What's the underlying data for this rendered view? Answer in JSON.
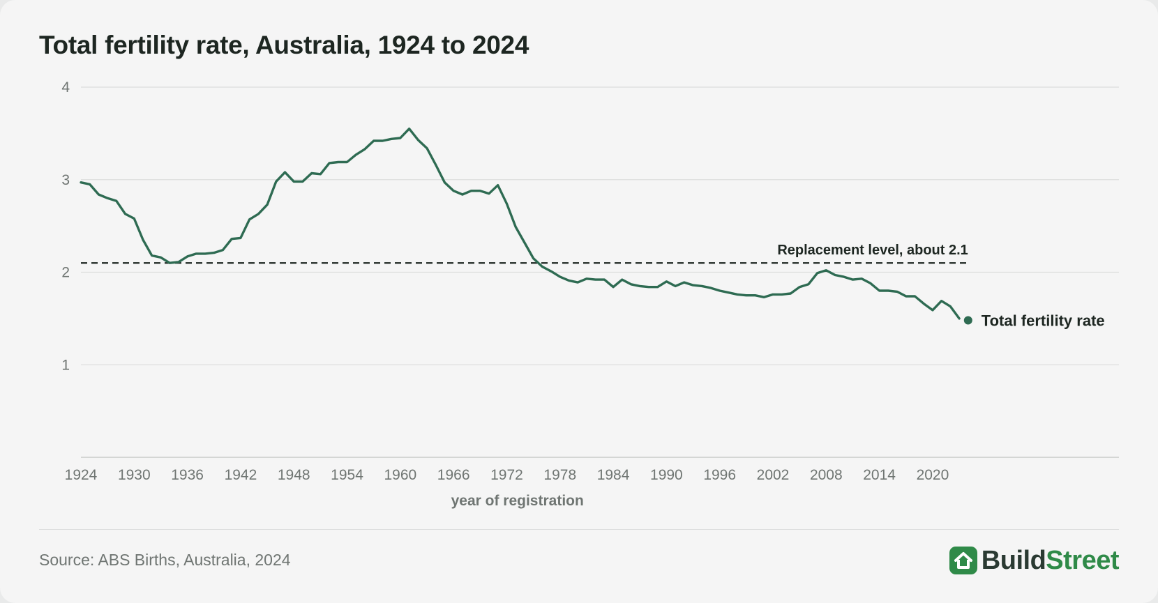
{
  "title": "Total fertility rate, Australia, 1924 to 2024",
  "source": "Source: ABS Births, Australia, 2024",
  "brand": {
    "part1": "Build",
    "part2": "Street",
    "icon": "house-icon"
  },
  "colors": {
    "line": "#2e6b52",
    "grid": "#dcdedd",
    "text": "#1d2621",
    "muted": "#6f7572",
    "brand_dark": "#2a3a32",
    "brand_green": "#2f8a48"
  },
  "chart_data": {
    "type": "line",
    "title": "Total fertility rate, Australia, 1924 to 2024",
    "xlabel": "year of registration",
    "ylabel": "",
    "xlim": [
      1924,
      2041
    ],
    "ylim": [
      0,
      4
    ],
    "xticks": [
      1924,
      1930,
      1936,
      1942,
      1948,
      1954,
      1960,
      1966,
      1972,
      1978,
      1984,
      1990,
      1996,
      2002,
      2008,
      2014,
      2020
    ],
    "yticks": [
      1,
      2,
      3,
      4
    ],
    "grid": true,
    "legend": "none",
    "series": [
      {
        "name": "Total fertility rate",
        "x": [
          1924,
          1925,
          1926,
          1927,
          1928,
          1929,
          1930,
          1931,
          1932,
          1933,
          1934,
          1935,
          1936,
          1937,
          1938,
          1939,
          1940,
          1941,
          1942,
          1943,
          1944,
          1945,
          1946,
          1947,
          1948,
          1949,
          1950,
          1951,
          1952,
          1953,
          1954,
          1955,
          1956,
          1957,
          1958,
          1959,
          1960,
          1961,
          1962,
          1963,
          1964,
          1965,
          1966,
          1967,
          1968,
          1969,
          1970,
          1971,
          1972,
          1973,
          1974,
          1975,
          1976,
          1977,
          1978,
          1979,
          1980,
          1981,
          1982,
          1983,
          1984,
          1985,
          1986,
          1987,
          1988,
          1989,
          1990,
          1991,
          1992,
          1993,
          1994,
          1995,
          1996,
          1997,
          1998,
          1999,
          2000,
          2001,
          2002,
          2003,
          2004,
          2005,
          2006,
          2007,
          2008,
          2009,
          2010,
          2011,
          2012,
          2013,
          2014,
          2015,
          2016,
          2017,
          2018,
          2019,
          2020,
          2021,
          2022,
          2023
        ],
        "values": [
          2.97,
          2.95,
          2.84,
          2.8,
          2.77,
          2.63,
          2.58,
          2.35,
          2.18,
          2.16,
          2.1,
          2.11,
          2.17,
          2.2,
          2.2,
          2.21,
          2.24,
          2.36,
          2.37,
          2.57,
          2.63,
          2.73,
          2.98,
          3.08,
          2.98,
          2.98,
          3.07,
          3.06,
          3.18,
          3.19,
          3.19,
          3.27,
          3.33,
          3.42,
          3.42,
          3.44,
          3.45,
          3.55,
          3.43,
          3.34,
          3.16,
          2.97,
          2.88,
          2.84,
          2.88,
          2.88,
          2.85,
          2.94,
          2.74,
          2.49,
          2.32,
          2.15,
          2.06,
          2.01,
          1.95,
          1.91,
          1.89,
          1.93,
          1.92,
          1.92,
          1.84,
          1.92,
          1.87,
          1.85,
          1.84,
          1.84,
          1.9,
          1.85,
          1.89,
          1.86,
          1.85,
          1.83,
          1.8,
          1.78,
          1.76,
          1.75,
          1.75,
          1.73,
          1.76,
          1.76,
          1.77,
          1.84,
          1.87,
          1.99,
          2.02,
          1.97,
          1.95,
          1.92,
          1.93,
          1.88,
          1.8,
          1.8,
          1.79,
          1.74,
          1.74,
          1.66,
          1.59,
          1.69,
          1.63,
          1.5
        ]
      }
    ],
    "end_point": {
      "x": 2024,
      "value": 1.48,
      "label": "Total fertility rate"
    },
    "annotations": [
      {
        "type": "hline",
        "y": 2.1,
        "x_start": 1924,
        "x_end": 2024,
        "label": "Replacement level, about 2.1"
      }
    ]
  }
}
